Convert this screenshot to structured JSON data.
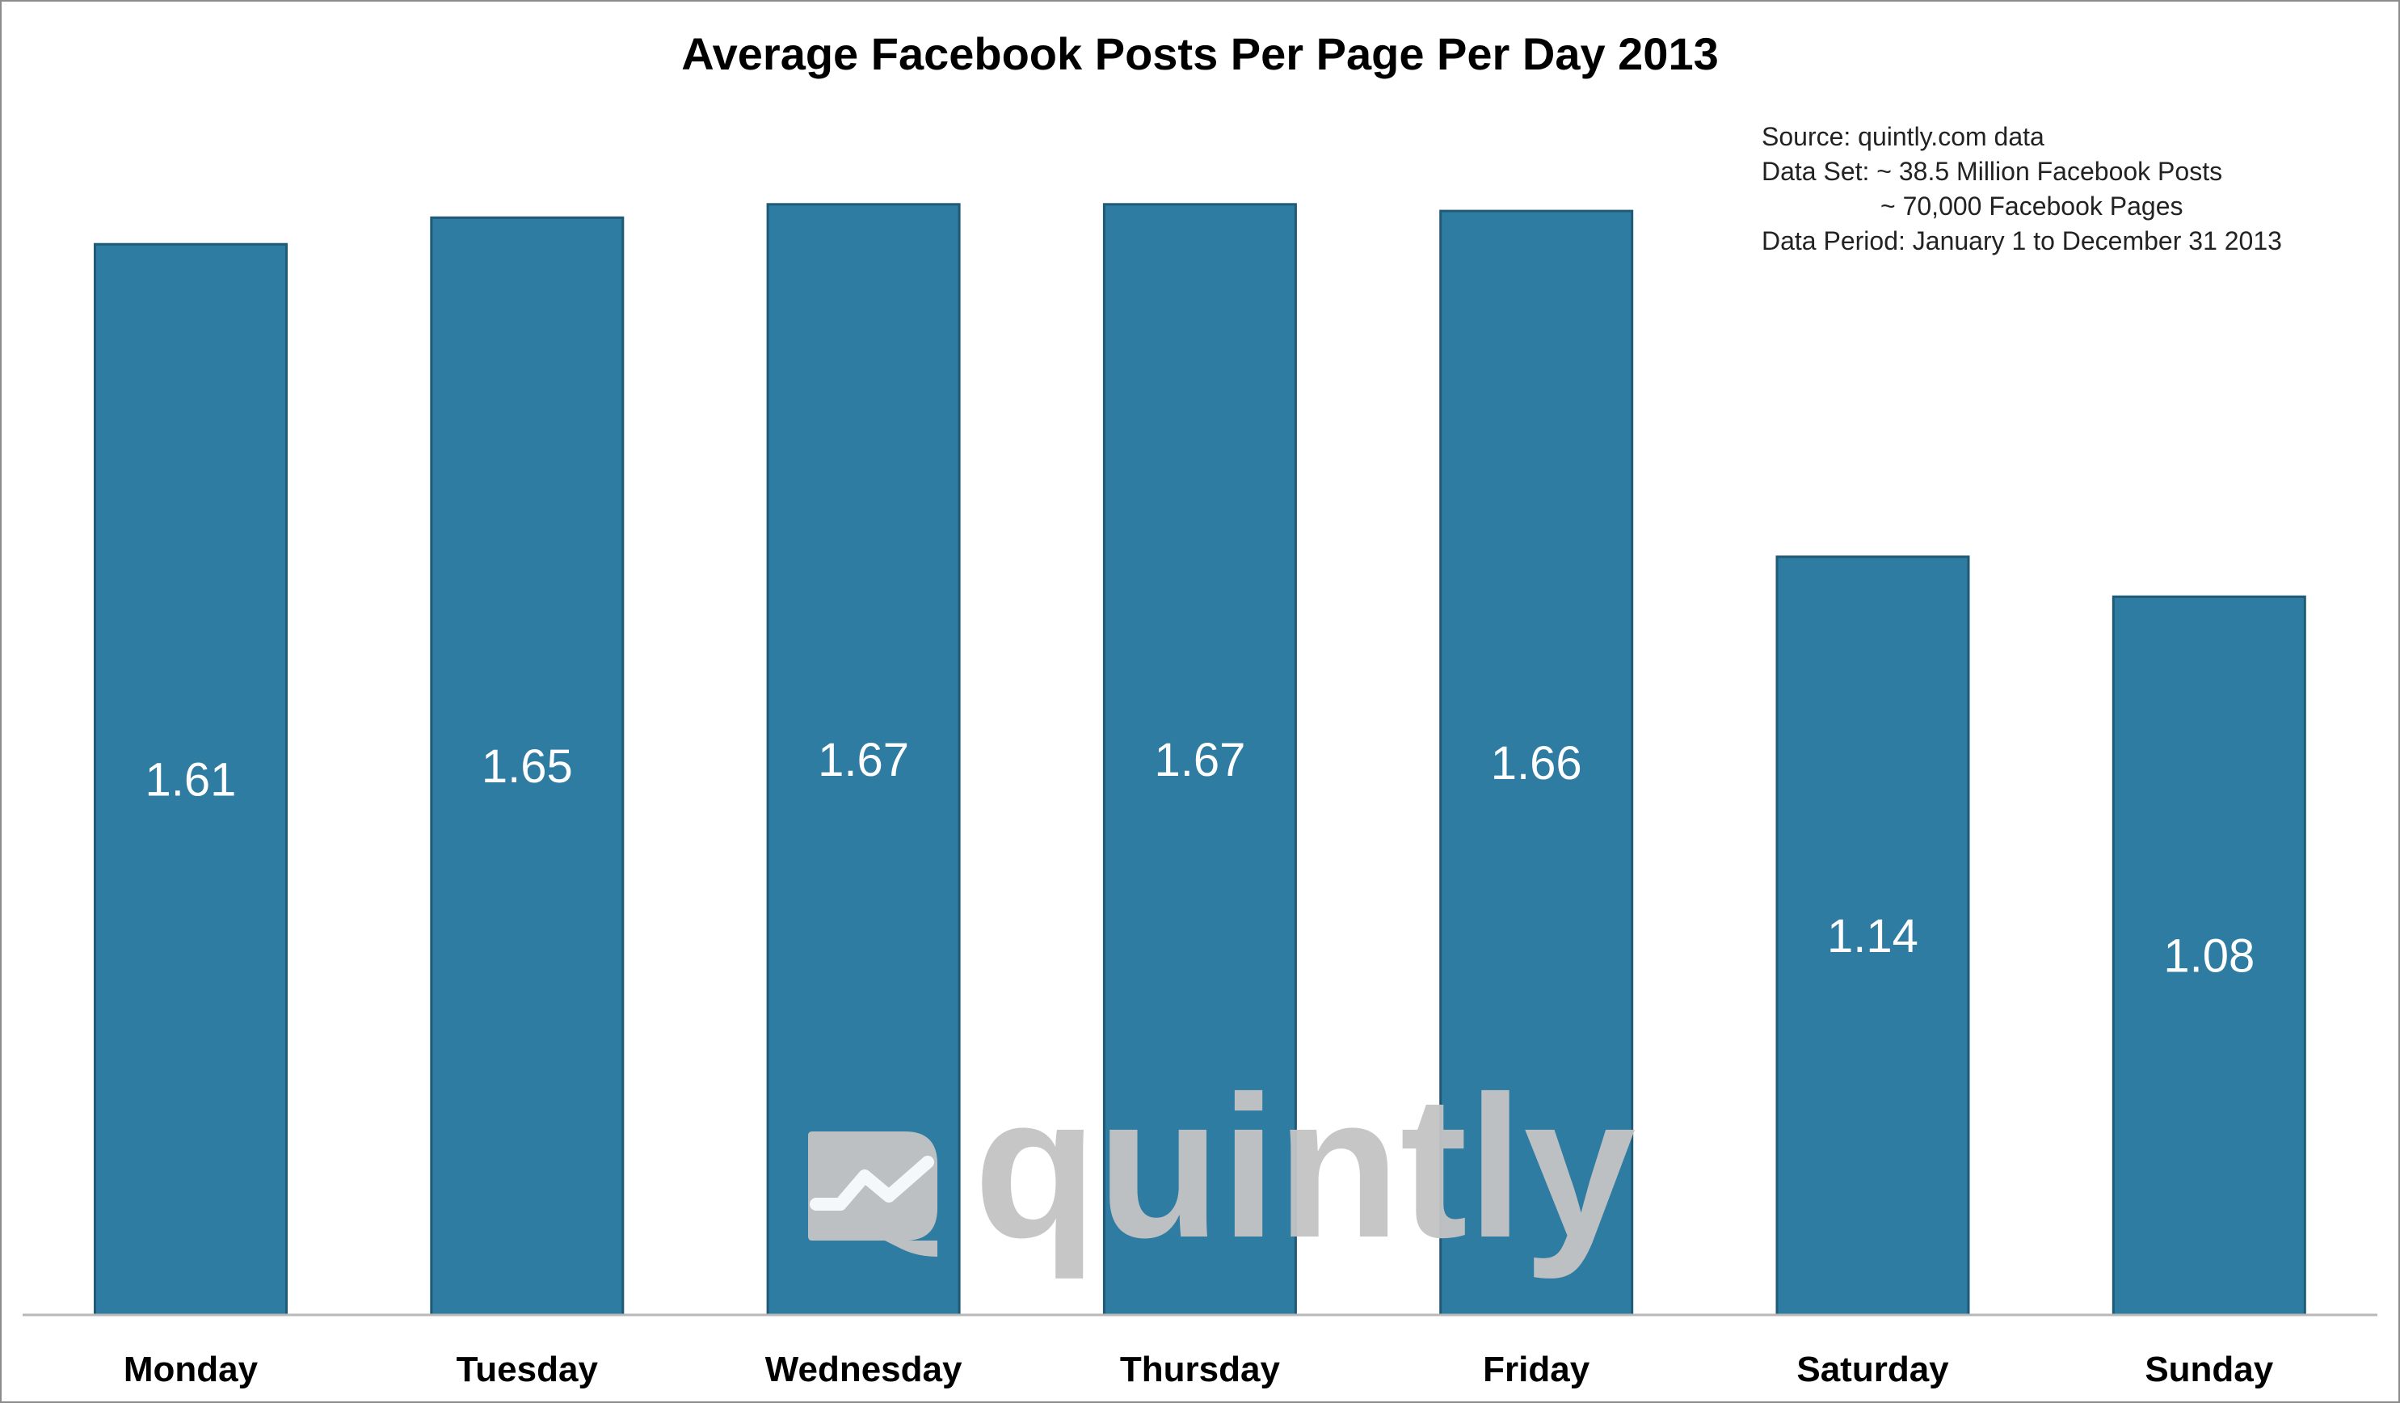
{
  "chart_data": {
    "type": "bar",
    "title": "Average Facebook Posts Per Page Per Day 2013",
    "xlabel": "",
    "ylabel": "",
    "categories": [
      "Monday",
      "Tuesday",
      "Wednesday",
      "Thursday",
      "Friday",
      "Saturday",
      "Sunday"
    ],
    "values": [
      1.61,
      1.65,
      1.67,
      1.67,
      1.66,
      1.14,
      1.08
    ],
    "value_labels": [
      "1.61",
      "1.65",
      "1.67",
      "1.67",
      "1.66",
      "1.14",
      "1.08"
    ],
    "ylim": [
      0,
      1.75
    ],
    "grid": false,
    "legend": "none",
    "bar_color": "#2e7ca1",
    "annotation": {
      "line1": "Source: quintly.com data",
      "line2": "Data Set: ~ 38.5 Million Facebook Posts",
      "line3": "~ 70,000 Facebook Pages",
      "line4": "Data Period: January 1 to December 31 2013"
    },
    "watermark": "quintly"
  }
}
